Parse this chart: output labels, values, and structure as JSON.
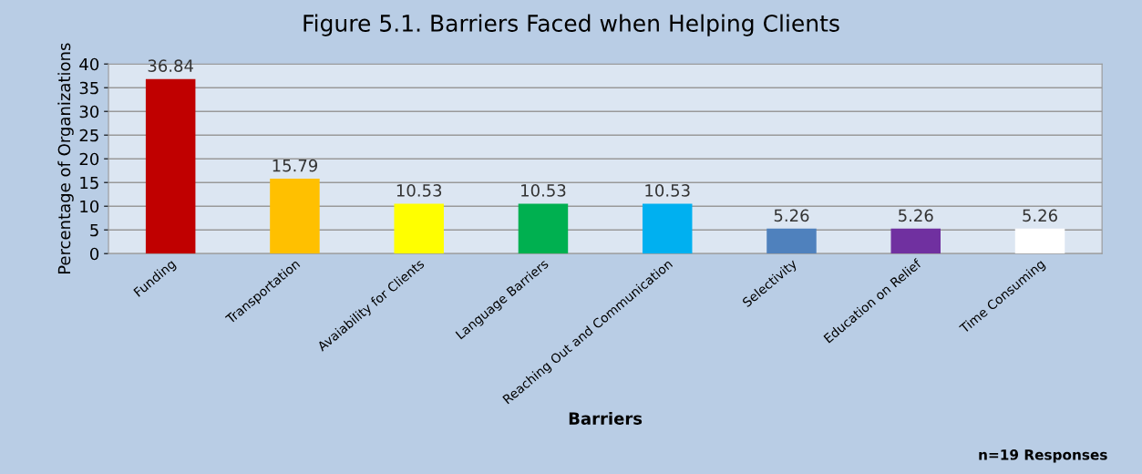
{
  "chart_data": {
    "type": "bar",
    "title": "Figure 5.1. Barriers Faced when Helping Clients",
    "xlabel": "Barriers",
    "ylabel": "Percentage of Organizations",
    "categories": [
      "Funding",
      "Transportation",
      "Avaiability for Clients",
      "Language Barriers",
      "Reaching Out and Communication",
      "Selectivity",
      "Education on Relief",
      "Time Consuming"
    ],
    "values": [
      36.84,
      15.79,
      10.53,
      10.53,
      10.53,
      5.26,
      5.26,
      5.26
    ],
    "colors": [
      "#c00000",
      "#ffc000",
      "#ffff00",
      "#00b050",
      "#00b0f0",
      "#4f81bd",
      "#7030a0",
      "#ffffff"
    ],
    "data_labels": true,
    "ylim": [
      0,
      40
    ],
    "yticks": [
      0,
      5,
      10,
      15,
      20,
      25,
      30,
      35,
      40
    ],
    "grid": "y",
    "annotations": [
      "n=19 Responses"
    ]
  }
}
